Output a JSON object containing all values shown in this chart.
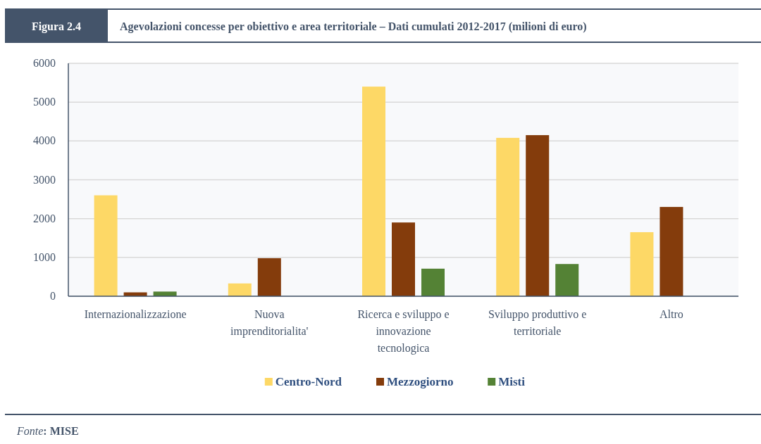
{
  "chart_data": {
    "type": "bar",
    "title": "Agevolazioni concesse per obiettivo e area territoriale – Dati cumulati 2012-2017 (milioni di euro)",
    "annotations": [
      "Figura 2.4",
      "Fonte: MISE"
    ],
    "categories": [
      "Internazionalizzazione",
      "Nuova imprenditorialita'",
      "Ricerca e sviluppo e innovazione tecnologica",
      "Sviluppo produttivo e territoriale",
      "Altro"
    ],
    "series": [
      {
        "name": "Centro-Nord",
        "color": "#fdd866",
        "values": [
          2600,
          330,
          5400,
          4080,
          1650
        ]
      },
      {
        "name": "Mezzogiorno",
        "color": "#843c0c",
        "values": [
          100,
          980,
          1900,
          4150,
          2300
        ]
      },
      {
        "name": "Misti",
        "color": "#548235",
        "values": [
          120,
          0,
          710,
          830,
          0
        ]
      }
    ],
    "ylim": [
      0,
      6000
    ],
    "yticks": [
      0,
      1000,
      2000,
      3000,
      4000,
      5000,
      6000
    ],
    "grid": "y",
    "legend": "bottom"
  }
}
